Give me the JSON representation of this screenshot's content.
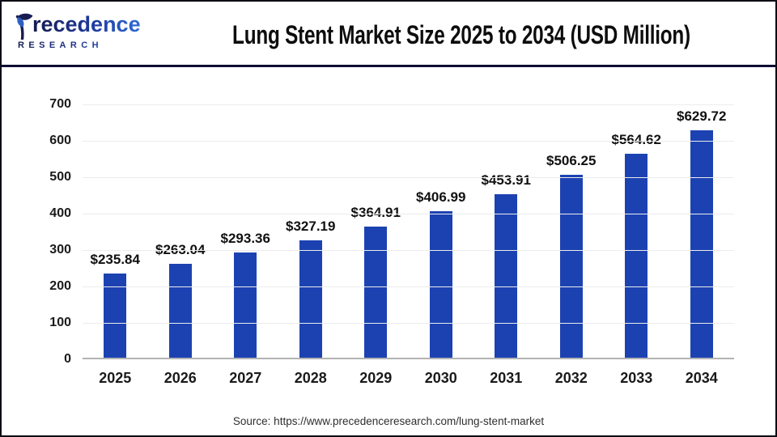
{
  "header": {
    "logo": {
      "brand": "Precedence",
      "brand_rest": "recedence",
      "subtitle": "RESEARCH",
      "color_dark": "#151b4e",
      "color_light": "#2f6bd4"
    },
    "title": "Lung Stent Market Size 2025 to 2034 (USD Million)",
    "divider_color": "#0d0d33"
  },
  "chart_data": {
    "type": "bar",
    "title": "Lung Stent Market Size 2025 to 2034 (USD Million)",
    "categories": [
      "2025",
      "2026",
      "2027",
      "2028",
      "2029",
      "2030",
      "2031",
      "2032",
      "2033",
      "2034"
    ],
    "values": [
      235.84,
      263.04,
      293.36,
      327.19,
      364.91,
      406.99,
      453.91,
      506.25,
      564.62,
      629.72
    ],
    "value_labels": [
      "$235.84",
      "$263.04",
      "$293.36",
      "$327.19",
      "$364.91",
      "$406.99",
      "$453.91",
      "$506.25",
      "$564.62",
      "$629.72"
    ],
    "value_prefix": "$",
    "xlabel": "",
    "ylabel": "",
    "ylim": [
      0,
      700
    ],
    "ytick_step": 100,
    "yticks": [
      0,
      100,
      200,
      300,
      400,
      500,
      600,
      700
    ],
    "grid": true,
    "legend": "none",
    "bar_color": "#1c42b2",
    "gridline_color": "#ececec",
    "axis_line_color": "#b3b3b3"
  },
  "footer": {
    "source": "Source: https://www.precedenceresearch.com/lung-stent-market"
  }
}
